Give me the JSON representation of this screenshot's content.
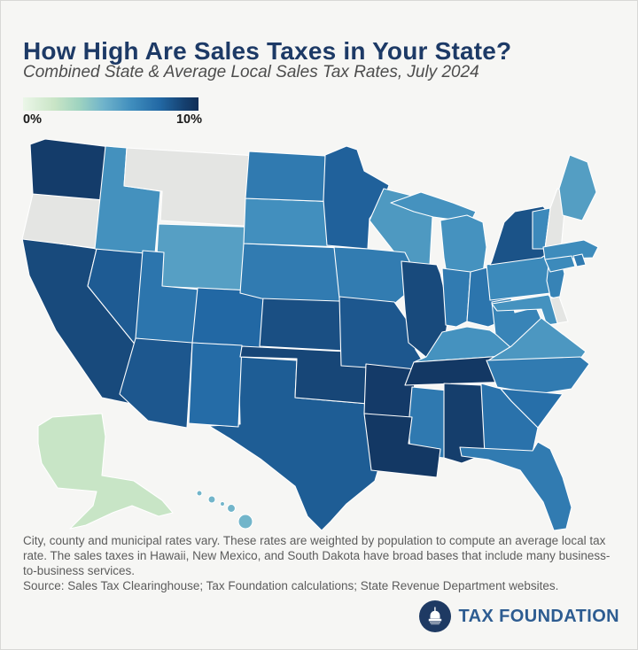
{
  "header": {
    "title": "How High Are Sales Taxes in Your State?",
    "subtitle": "Combined State & Average Local Sales Tax Rates, July 2024"
  },
  "legend": {
    "min_label": "0%",
    "max_label": "10%",
    "gradient_stops": [
      "#ebf6e8",
      "#c9e5c6",
      "#9ed3c0",
      "#6fb3cb",
      "#3f8dbd",
      "#2268a4",
      "#15406f",
      "#112e57"
    ],
    "gradient_positions": [
      0,
      18,
      32,
      46,
      62,
      78,
      92,
      100
    ],
    "no_tax_color": "#e4e5e3"
  },
  "colors": {
    "title": "#1d3a66",
    "background": "#f6f6f4",
    "logo_blue": "#2d5c91",
    "logo_circle": "#1e3a63"
  },
  "chart_data": {
    "type": "choropleth",
    "title": "Combined State & Average Local Sales Tax Rates, July 2024",
    "unit": "percent",
    "scale_range": [
      0,
      10
    ],
    "legend": {
      "min": "0%",
      "max": "10%"
    },
    "states": [
      {
        "abbr": "AL",
        "name": "Alabama",
        "rate": 9.29
      },
      {
        "abbr": "AK",
        "name": "Alaska",
        "rate": 1.82
      },
      {
        "abbr": "AZ",
        "name": "Arizona",
        "rate": 8.38
      },
      {
        "abbr": "AR",
        "name": "Arkansas",
        "rate": 9.45
      },
      {
        "abbr": "CA",
        "name": "California",
        "rate": 8.85
      },
      {
        "abbr": "CO",
        "name": "Colorado",
        "rate": 7.81
      },
      {
        "abbr": "CT",
        "name": "Connecticut",
        "rate": 6.35
      },
      {
        "abbr": "DE",
        "name": "Delaware",
        "rate": 0,
        "no_sales_tax": true
      },
      {
        "abbr": "FL",
        "name": "Florida",
        "rate": 7.0
      },
      {
        "abbr": "GA",
        "name": "Georgia",
        "rate": 7.38
      },
      {
        "abbr": "HI",
        "name": "Hawaii",
        "rate": 4.5
      },
      {
        "abbr": "ID",
        "name": "Idaho",
        "rate": 6.03
      },
      {
        "abbr": "IL",
        "name": "Illinois",
        "rate": 8.86
      },
      {
        "abbr": "IN",
        "name": "Indiana",
        "rate": 7.0
      },
      {
        "abbr": "IA",
        "name": "Iowa",
        "rate": 6.94
      },
      {
        "abbr": "KS",
        "name": "Kansas",
        "rate": 8.66
      },
      {
        "abbr": "KY",
        "name": "Kentucky",
        "rate": 6.0
      },
      {
        "abbr": "LA",
        "name": "Louisiana",
        "rate": 9.56
      },
      {
        "abbr": "ME",
        "name": "Maine",
        "rate": 5.5
      },
      {
        "abbr": "MD",
        "name": "Maryland",
        "rate": 6.0
      },
      {
        "abbr": "MA",
        "name": "Massachusetts",
        "rate": 6.25
      },
      {
        "abbr": "MI",
        "name": "Michigan",
        "rate": 6.0
      },
      {
        "abbr": "MN",
        "name": "Minnesota",
        "rate": 8.04
      },
      {
        "abbr": "MS",
        "name": "Mississippi",
        "rate": 7.06
      },
      {
        "abbr": "MO",
        "name": "Missouri",
        "rate": 8.39
      },
      {
        "abbr": "MT",
        "name": "Montana",
        "rate": 0,
        "no_sales_tax": true
      },
      {
        "abbr": "NE",
        "name": "Nebraska",
        "rate": 6.97
      },
      {
        "abbr": "NV",
        "name": "Nevada",
        "rate": 8.24
      },
      {
        "abbr": "NH",
        "name": "New Hampshire",
        "rate": 0,
        "no_sales_tax": true
      },
      {
        "abbr": "NJ",
        "name": "New Jersey",
        "rate": 6.63
      },
      {
        "abbr": "NM",
        "name": "New Mexico",
        "rate": 7.62
      },
      {
        "abbr": "NY",
        "name": "New York",
        "rate": 8.53
      },
      {
        "abbr": "NC",
        "name": "North Carolina",
        "rate": 7.0
      },
      {
        "abbr": "ND",
        "name": "North Dakota",
        "rate": 7.04
      },
      {
        "abbr": "OH",
        "name": "Ohio",
        "rate": 7.24
      },
      {
        "abbr": "OK",
        "name": "Oklahoma",
        "rate": 8.99
      },
      {
        "abbr": "OR",
        "name": "Oregon",
        "rate": 0,
        "no_sales_tax": true
      },
      {
        "abbr": "PA",
        "name": "Pennsylvania",
        "rate": 6.34
      },
      {
        "abbr": "RI",
        "name": "Rhode Island",
        "rate": 7.0
      },
      {
        "abbr": "SC",
        "name": "South Carolina",
        "rate": 7.5
      },
      {
        "abbr": "SD",
        "name": "South Dakota",
        "rate": 6.11
      },
      {
        "abbr": "TN",
        "name": "Tennessee",
        "rate": 9.55
      },
      {
        "abbr": "TX",
        "name": "Texas",
        "rate": 8.2
      },
      {
        "abbr": "UT",
        "name": "Utah",
        "rate": 7.25
      },
      {
        "abbr": "VT",
        "name": "Vermont",
        "rate": 6.36
      },
      {
        "abbr": "VA",
        "name": "Virginia",
        "rate": 5.77
      },
      {
        "abbr": "WA",
        "name": "Washington",
        "rate": 9.38
      },
      {
        "abbr": "WV",
        "name": "West Virginia",
        "rate": 6.57
      },
      {
        "abbr": "WI",
        "name": "Wisconsin",
        "rate": 5.7
      },
      {
        "abbr": "WY",
        "name": "Wyoming",
        "rate": 5.44
      }
    ]
  },
  "footnote": {
    "note": "City, county and municipal rates vary. These rates are weighted by population to compute an average local tax rate. The sales taxes in Hawaii, New Mexico, and South Dakota have broad bases that include many business-to-business services.",
    "source": "Source: Sales Tax Clearinghouse; Tax Foundation calculations; State Revenue Department websites."
  },
  "logo": {
    "text": "TAX FOUNDATION"
  }
}
